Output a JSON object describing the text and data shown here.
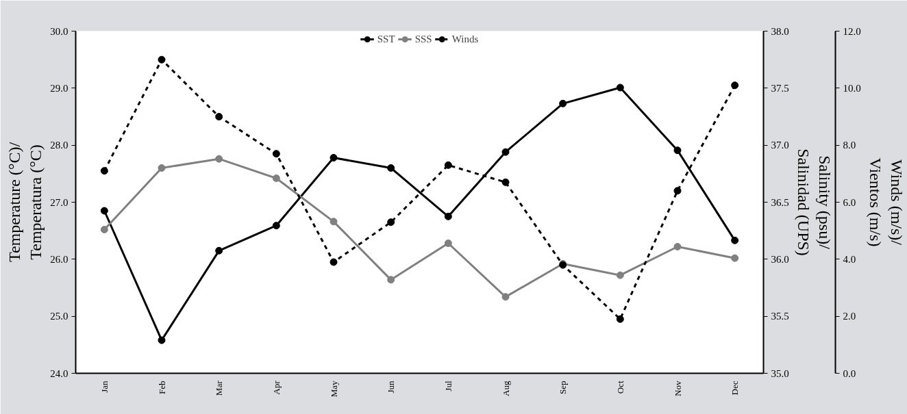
{
  "chart_data": {
    "type": "line",
    "xlabel": null,
    "ylabel": "Temperature (°C)/\nTemperatura (°C)",
    "y2label": "Salinity (psu)/\nSalinidad (UPS)",
    "y3label": "Winds (m/s)/\nVientos (m/s)",
    "categories": [
      "Jan",
      "Feb",
      "Mar",
      "Apr",
      "May",
      "Jun",
      "Jul",
      "Aug",
      "Sep",
      "Oct",
      "Nov",
      "Dec"
    ],
    "series": [
      {
        "name": "SST",
        "color": "#000000",
        "marker": "circle",
        "line_style": "solid",
        "values": [
          26.85,
          24.58,
          26.15,
          26.59,
          27.78,
          27.6,
          26.75,
          27.88,
          28.73,
          29.01,
          27.91,
          26.33
        ]
      },
      {
        "name": "SSS",
        "color": "#808080",
        "marker": "circle",
        "line_style": "solid",
        "axis": "y2",
        "values": [
          36.26,
          36.8,
          36.88,
          36.71,
          36.33,
          35.82,
          36.14,
          35.67,
          35.96,
          35.86,
          36.11,
          36.01
        ]
      },
      {
        "name": "Winds",
        "color": "#000000",
        "marker": "circle",
        "line_style": "dashed",
        "axis": "y3",
        "values": [
          7.1,
          11.0,
          9.0,
          7.7,
          3.9,
          5.3,
          7.3,
          6.7,
          3.8,
          1.9,
          6.4,
          10.1
        ]
      }
    ],
    "ylim": [
      24,
      30
    ],
    "yticks": [
      {
        "value": 24,
        "label": "24.0"
      },
      {
        "value": 25,
        "label": "25.0"
      },
      {
        "value": 26,
        "label": "26.0"
      },
      {
        "value": 27,
        "label": "27.0"
      },
      {
        "value": 28,
        "label": "28.0"
      },
      {
        "value": 29,
        "label": "29.0"
      },
      {
        "value": 30,
        "label": "30.0"
      }
    ],
    "y2lim": [
      35,
      38
    ],
    "y2ticks": [
      {
        "value": 35,
        "label": "35.0"
      },
      {
        "value": 35.5,
        "label": "35.5"
      },
      {
        "value": 36,
        "label": "36.0"
      },
      {
        "value": 36.5,
        "label": "36.5"
      },
      {
        "value": 37,
        "label": "37.0"
      },
      {
        "value": 37.5,
        "label": "37.5"
      },
      {
        "value": 38,
        "label": "38.0"
      }
    ],
    "y3lim": [
      0,
      12
    ],
    "y3ticks": [
      {
        "value": 0,
        "label": "0.0"
      },
      {
        "value": 2,
        "label": "2.0"
      },
      {
        "value": 4,
        "label": "4.0"
      },
      {
        "value": 6,
        "label": "6.0"
      },
      {
        "value": 8,
        "label": "8.0"
      },
      {
        "value": 10,
        "label": "10.0"
      },
      {
        "value": 12,
        "label": "12.0"
      }
    ],
    "grid": false,
    "legend": "top"
  }
}
